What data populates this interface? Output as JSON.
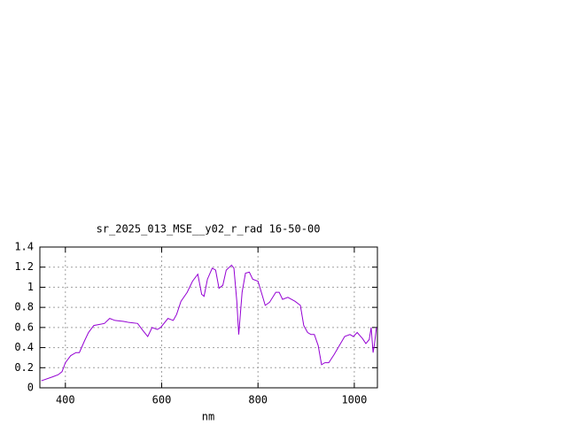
{
  "chart_data": {
    "type": "line",
    "title": "sr_2025_013_MSE__y02_r_rad 16-50-00",
    "xlabel": "nm",
    "x": [
      350,
      374,
      385,
      393,
      400,
      411,
      422,
      429,
      440,
      448,
      459,
      470,
      481,
      492,
      503,
      521,
      532,
      550,
      561,
      571,
      580,
      591,
      598,
      613,
      624,
      631,
      640,
      653,
      664,
      675,
      683,
      688,
      695,
      705,
      712,
      719,
      727,
      734,
      745,
      750,
      756,
      760,
      767,
      774,
      782,
      789,
      800,
      807,
      815,
      824,
      837,
      844,
      851,
      862,
      877,
      888,
      895,
      903,
      910,
      917,
      925,
      932,
      939,
      947,
      958,
      969,
      980,
      991,
      998,
      1006,
      1017,
      1024,
      1031,
      1035,
      1039,
      1042,
      1046
    ],
    "series": [
      {
        "color": "#9400d3",
        "values": [
          0.07,
          0.11,
          0.13,
          0.16,
          0.25,
          0.32,
          0.35,
          0.35,
          0.47,
          0.55,
          0.62,
          0.63,
          0.64,
          0.69,
          0.67,
          0.66,
          0.65,
          0.64,
          0.57,
          0.51,
          0.6,
          0.58,
          0.6,
          0.69,
          0.67,
          0.73,
          0.86,
          0.95,
          1.06,
          1.13,
          0.93,
          0.91,
          1.08,
          1.19,
          1.17,
          0.99,
          1.02,
          1.17,
          1.22,
          1.19,
          0.86,
          0.53,
          0.95,
          1.14,
          1.15,
          1.08,
          1.06,
          0.95,
          0.82,
          0.85,
          0.95,
          0.95,
          0.88,
          0.9,
          0.86,
          0.82,
          0.62,
          0.55,
          0.53,
          0.53,
          0.42,
          0.23,
          0.25,
          0.25,
          0.33,
          0.42,
          0.51,
          0.53,
          0.51,
          0.55,
          0.49,
          0.44,
          0.48,
          0.6,
          0.35,
          0.44,
          0.6
        ]
      }
    ],
    "xlim": [
      347,
      1048
    ],
    "xticks": [
      400,
      600,
      800,
      1000
    ],
    "ylim": [
      0,
      1.4
    ],
    "yticks": [
      0,
      0.2,
      0.4,
      0.6,
      0.8,
      1,
      1.2,
      1.4
    ],
    "grid": true
  }
}
